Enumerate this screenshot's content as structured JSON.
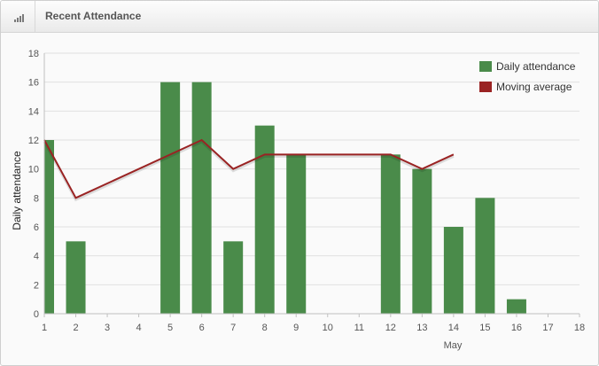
{
  "widget": {
    "title": "Recent Attendance",
    "icon": "bar-signal-icon"
  },
  "colors": {
    "bar": "#4a8b4a",
    "line": "#9a2323",
    "grid": "#e0e0e0",
    "axis": "#c0c0c0",
    "text": "#555555"
  },
  "chart_data": {
    "type": "bar",
    "x": [
      1,
      2,
      3,
      4,
      5,
      6,
      7,
      8,
      9,
      10,
      11,
      12,
      13,
      14,
      15,
      16,
      17,
      18
    ],
    "xlabel": "May",
    "ylabel": "Daily attendance",
    "ylim": [
      0,
      18
    ],
    "yticks": [
      0,
      2,
      4,
      6,
      8,
      10,
      12,
      14,
      16,
      18
    ],
    "xlim": [
      1,
      18
    ],
    "grid": true,
    "legend": "top-right",
    "series": [
      {
        "name": "Daily attendance",
        "type": "bar",
        "x": [
          1,
          2,
          5,
          6,
          7,
          8,
          9,
          12,
          13,
          14,
          15,
          16
        ],
        "values": [
          12,
          5,
          16,
          16,
          5,
          13,
          11,
          11,
          10,
          6,
          8,
          1
        ]
      },
      {
        "name": "Moving average",
        "type": "line",
        "x": [
          1,
          2,
          6,
          7,
          8,
          12,
          13,
          14
        ],
        "values": [
          12,
          8,
          12,
          10,
          11,
          11,
          10,
          11
        ]
      }
    ]
  }
}
